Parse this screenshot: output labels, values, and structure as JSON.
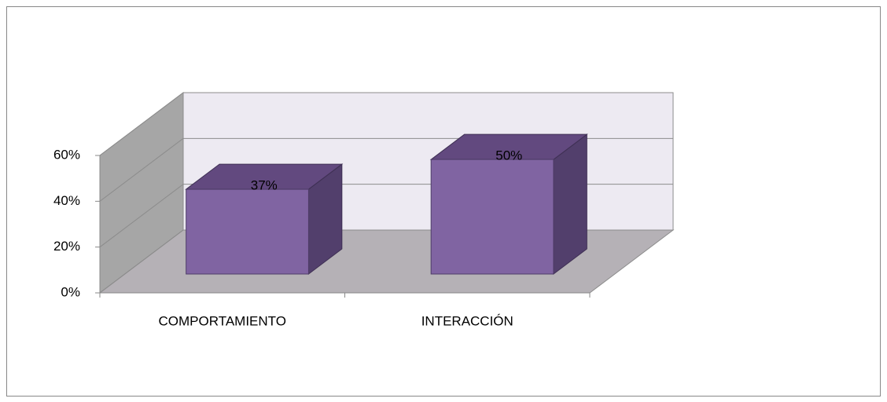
{
  "chart_data": {
    "type": "bar3d",
    "categories": [
      "COMPORTAMIENTO",
      "INTERACCIÓN"
    ],
    "values": [
      37,
      50
    ],
    "value_labels": [
      "37%",
      "50%"
    ],
    "color": "#8064a2",
    "ylim": [
      0,
      60
    ],
    "yticks": [
      {
        "value": 0,
        "label": "0%"
      },
      {
        "value": 20,
        "label": "20%"
      },
      {
        "value": 40,
        "label": "40%"
      },
      {
        "value": 60,
        "label": "60%"
      }
    ],
    "grid": true
  }
}
